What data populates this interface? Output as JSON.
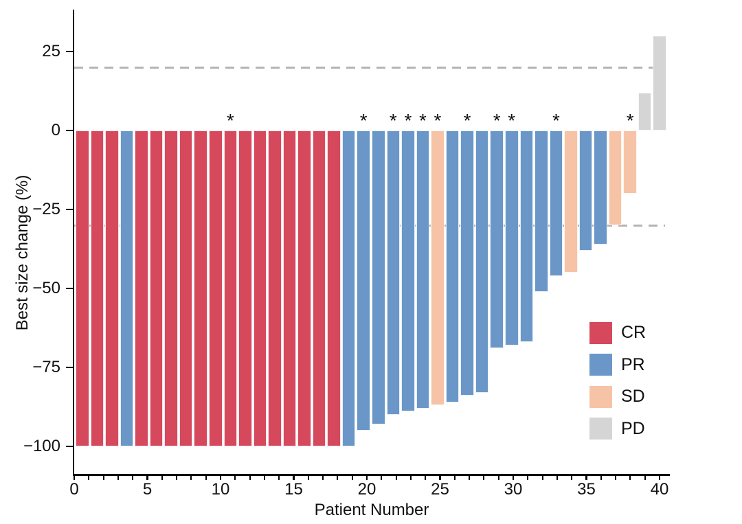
{
  "figure": {
    "x_axis_title": "Patient Number",
    "y_axis_title": "Best size change (%)",
    "star_symbol": "*"
  },
  "chart_data": {
    "type": "bar",
    "subtype": "waterfall-tumor-response",
    "title": "",
    "xlabel": "Patient Number",
    "ylabel": "Best size change (%)",
    "xlim": [
      0,
      40.6
    ],
    "ylim": [
      -108,
      38
    ],
    "grid": false,
    "legend_position": "right-center",
    "xticks": [
      {
        "v": 0,
        "label": "0"
      },
      {
        "v": 5,
        "label": "5"
      },
      {
        "v": 10,
        "label": "10"
      },
      {
        "v": 15,
        "label": "15"
      },
      {
        "v": 20,
        "label": "20"
      },
      {
        "v": 25,
        "label": "25"
      },
      {
        "v": 30,
        "label": "30"
      },
      {
        "v": 35,
        "label": "35"
      },
      {
        "v": 40,
        "label": "40"
      }
    ],
    "minor_xtick_every": 1,
    "yticks": [
      {
        "v": 25,
        "label": "25"
      },
      {
        "v": 0,
        "label": "0"
      },
      {
        "v": -25,
        "label": "−25"
      },
      {
        "v": -50,
        "label": "−50"
      },
      {
        "v": -75,
        "label": "−75"
      },
      {
        "v": -100,
        "label": "−100"
      }
    ],
    "reference_lines": [
      {
        "y": 20,
        "style": "dashed",
        "color": "#b4b4b4"
      },
      {
        "y": -30,
        "style": "dashed",
        "color": "#b4b4b4"
      }
    ],
    "colors": {
      "CR": "#d6495c",
      "PR": "#6a97c8",
      "SD": "#f7c3a6",
      "PD": "#d5d5d5"
    },
    "legend": [
      {
        "label": "CR",
        "color": "#d6495c"
      },
      {
        "label": "PR",
        "color": "#6a97c8"
      },
      {
        "label": "SD",
        "color": "#f7c3a6"
      },
      {
        "label": "PD",
        "color": "#d5d5d5"
      }
    ],
    "star_symbol": "*",
    "patients": [
      {
        "n": 1,
        "value": -100,
        "response": "CR",
        "star": false
      },
      {
        "n": 2,
        "value": -100,
        "response": "CR",
        "star": false
      },
      {
        "n": 3,
        "value": -100,
        "response": "CR",
        "star": false
      },
      {
        "n": 4,
        "value": -100,
        "response": "PR",
        "star": false
      },
      {
        "n": 5,
        "value": -100,
        "response": "CR",
        "star": false
      },
      {
        "n": 6,
        "value": -100,
        "response": "CR",
        "star": false
      },
      {
        "n": 7,
        "value": -100,
        "response": "CR",
        "star": false
      },
      {
        "n": 8,
        "value": -100,
        "response": "CR",
        "star": false
      },
      {
        "n": 9,
        "value": -100,
        "response": "CR",
        "star": false
      },
      {
        "n": 10,
        "value": -100,
        "response": "CR",
        "star": false
      },
      {
        "n": 11,
        "value": -100,
        "response": "CR",
        "star": true
      },
      {
        "n": 12,
        "value": -100,
        "response": "CR",
        "star": false
      },
      {
        "n": 13,
        "value": -100,
        "response": "CR",
        "star": false
      },
      {
        "n": 14,
        "value": -100,
        "response": "CR",
        "star": false
      },
      {
        "n": 15,
        "value": -100,
        "response": "CR",
        "star": false
      },
      {
        "n": 16,
        "value": -100,
        "response": "CR",
        "star": false
      },
      {
        "n": 17,
        "value": -100,
        "response": "CR",
        "star": false
      },
      {
        "n": 18,
        "value": -100,
        "response": "CR",
        "star": false
      },
      {
        "n": 19,
        "value": -100,
        "response": "PR",
        "star": false
      },
      {
        "n": 20,
        "value": -95,
        "response": "PR",
        "star": true
      },
      {
        "n": 21,
        "value": -93,
        "response": "PR",
        "star": false
      },
      {
        "n": 22,
        "value": -90,
        "response": "PR",
        "star": true
      },
      {
        "n": 23,
        "value": -89,
        "response": "PR",
        "star": true
      },
      {
        "n": 24,
        "value": -88,
        "response": "PR",
        "star": true
      },
      {
        "n": 25,
        "value": -87,
        "response": "SD",
        "star": true
      },
      {
        "n": 26,
        "value": -86,
        "response": "PR",
        "star": false
      },
      {
        "n": 27,
        "value": -84,
        "response": "PR",
        "star": true
      },
      {
        "n": 28,
        "value": -83,
        "response": "PR",
        "star": false
      },
      {
        "n": 29,
        "value": -69,
        "response": "PR",
        "star": true
      },
      {
        "n": 30,
        "value": -68,
        "response": "PR",
        "star": true
      },
      {
        "n": 31,
        "value": -67,
        "response": "PR",
        "star": false
      },
      {
        "n": 32,
        "value": -51,
        "response": "PR",
        "star": false
      },
      {
        "n": 33,
        "value": -46,
        "response": "PR",
        "star": true
      },
      {
        "n": 34,
        "value": -45,
        "response": "SD",
        "star": false
      },
      {
        "n": 35,
        "value": -38,
        "response": "PR",
        "star": false
      },
      {
        "n": 36,
        "value": -36,
        "response": "PR",
        "star": false
      },
      {
        "n": 37,
        "value": -30,
        "response": "SD",
        "star": false
      },
      {
        "n": 38,
        "value": -20,
        "response": "SD",
        "star": true
      },
      {
        "n": 39,
        "value": 12,
        "response": "PD",
        "star": false
      },
      {
        "n": 40,
        "value": 30,
        "response": "PD",
        "star": false
      }
    ]
  }
}
